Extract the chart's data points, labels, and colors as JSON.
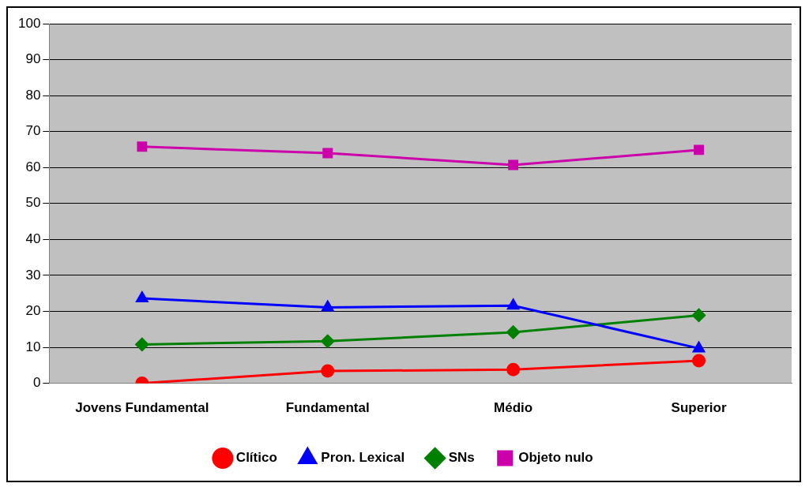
{
  "chart_data": {
    "type": "line",
    "categories": [
      "Jovens Fundamental",
      "Fundamental",
      "Médio",
      "Superior"
    ],
    "series": [
      {
        "name": "Clítico",
        "color": "#ff0000",
        "marker": "circle",
        "values": [
          0,
          3.4,
          3.8,
          6.3
        ]
      },
      {
        "name": "Pron. Lexical",
        "color": "#0000ff",
        "marker": "triangle",
        "values": [
          23.6,
          21.1,
          21.6,
          9.7
        ]
      },
      {
        "name": "SNs",
        "color": "#008000",
        "marker": "diamond",
        "values": [
          10.8,
          11.7,
          14.2,
          18.9
        ]
      },
      {
        "name": "Objeto nulo",
        "color": "#cc00aa",
        "marker": "square",
        "values": [
          65.8,
          64.0,
          60.7,
          64.9
        ]
      }
    ],
    "ylim": [
      0,
      100
    ],
    "yticks": [
      0,
      10,
      20,
      30,
      40,
      50,
      60,
      70,
      80,
      90,
      100
    ],
    "grid": "y",
    "legend": "bottom"
  }
}
